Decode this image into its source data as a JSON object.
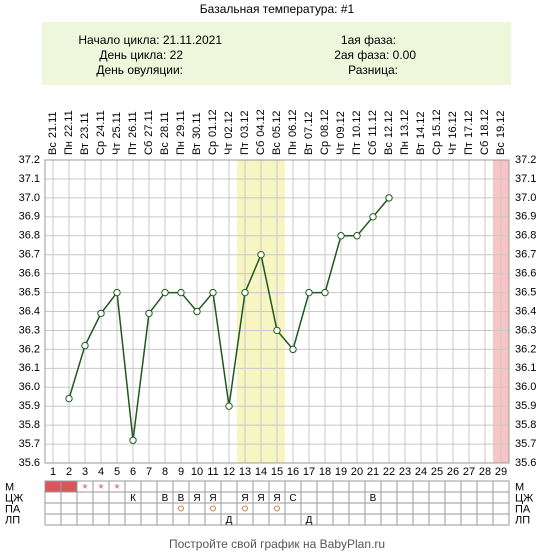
{
  "chart_data": {
    "type": "line",
    "title": "Базальная температура: #1",
    "info_left": [
      "Начало цикла: 21.11.2021",
      "День цикла: 22",
      "День овуляции:"
    ],
    "info_right": [
      "1ая фаза:",
      "2ая фаза: 0.00",
      "Разница:"
    ],
    "weekdays": [
      "Вс",
      "Пн",
      "Вт",
      "Ср",
      "Чт",
      "Пт",
      "Сб",
      "Вс",
      "Пн",
      "Вт",
      "Ср",
      "Чт",
      "Пт",
      "Сб",
      "Вс",
      "Пн",
      "Вт",
      "Ср",
      "Чт",
      "Пт",
      "Сб",
      "Вс",
      "Пн",
      "Вт",
      "Ср",
      "Чт",
      "Пт",
      "Сб",
      "Вс"
    ],
    "dates": [
      "21.11",
      "22.11",
      "23.11",
      "24.11",
      "25.11",
      "26.11",
      "27.11",
      "28.11",
      "29.11",
      "30.11",
      "01.12",
      "02.12",
      "03.12",
      "04.12",
      "05.12",
      "06.12",
      "07.12",
      "08.12",
      "09.12",
      "10.12",
      "11.12",
      "12.12",
      "13.12",
      "14.12",
      "15.12",
      "16.12",
      "17.12",
      "18.12",
      "19.12"
    ],
    "categories": [
      1,
      2,
      3,
      4,
      5,
      6,
      7,
      8,
      9,
      10,
      11,
      12,
      13,
      14,
      15,
      16,
      17,
      18,
      19,
      20,
      21,
      22,
      23,
      24,
      25,
      26,
      27,
      28,
      29
    ],
    "values": [
      null,
      35.94,
      36.22,
      36.39,
      36.5,
      35.72,
      36.39,
      36.5,
      36.5,
      36.4,
      36.5,
      35.9,
      36.5,
      36.7,
      36.3,
      36.2,
      36.5,
      36.5,
      36.8,
      36.8,
      36.9,
      37.0,
      null,
      null,
      null,
      null,
      null,
      null,
      null
    ],
    "color": "#1e5a1e",
    "ylim": [
      35.6,
      37.2
    ],
    "yticks": [
      35.6,
      35.7,
      35.8,
      35.9,
      {
        "value": 36,
        "label": "36.0"
      },
      36.1,
      36.2,
      36.3,
      36.4,
      36.5,
      36.6,
      36.7,
      36.8,
      36.9,
      {
        "value": 37,
        "label": "37.0"
      },
      37.1,
      37.2
    ],
    "grid": true,
    "highlight_days": [
      13,
      14,
      15
    ],
    "highlight_color": "#f7f5c2",
    "end_day": 29,
    "end_color": "#f9c4c4",
    "rows": [
      {
        "label": "М",
        "cells": [
          null,
          null,
          "*",
          "*",
          "*",
          null,
          null,
          null,
          null,
          null,
          null,
          null,
          null,
          null,
          null,
          null,
          null,
          null,
          null,
          null,
          null,
          null,
          null,
          null,
          null,
          null,
          null,
          null,
          null
        ],
        "filled_days": [
          1,
          2
        ],
        "color": "#d9575b"
      },
      {
        "label": "ЦЖ",
        "cells": [
          null,
          null,
          null,
          null,
          null,
          "К",
          null,
          "В",
          "В",
          "Я",
          "Я",
          null,
          "Я",
          "Я",
          "Я",
          "С",
          null,
          null,
          null,
          null,
          "В",
          null,
          null,
          null,
          null,
          null,
          null,
          null,
          null
        ]
      },
      {
        "label": "ПА",
        "circle_days": [
          9,
          11,
          13,
          15
        ],
        "color": "#e07a3a"
      },
      {
        "label": "ЛП",
        "cells": [
          null,
          null,
          null,
          null,
          null,
          null,
          null,
          null,
          null,
          null,
          null,
          "Д",
          null,
          null,
          null,
          null,
          "Д",
          null,
          null,
          null,
          null,
          null,
          null,
          null,
          null,
          null,
          null,
          null,
          null
        ]
      }
    ],
    "footer": "Постройте свой график на BabyPlan.ru"
  }
}
